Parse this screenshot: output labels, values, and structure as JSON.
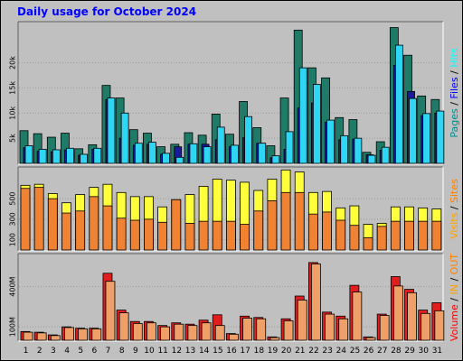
{
  "title": "Daily usage for October 2024",
  "colors": {
    "background": "#c0c0c0",
    "title": "#0000ff",
    "pages": "#008b8b",
    "files": "#0000ff",
    "hits": "#00ffff",
    "pages_bar": "#1f7b67",
    "files_bar": "#1a1a9c",
    "hits_bar": "#2fd6f4",
    "visits": "#ff8000",
    "sites": "#ff8000",
    "visits_bar": "#ffff3c",
    "sites_bar": "#ef8233",
    "volume": "#ff0000",
    "in": "#ffa000",
    "out": "#ff8000",
    "volume_bar": "#e01e1e",
    "in_bar": "#ef9f68",
    "weekend_label": "#008000",
    "day_label": "#000000"
  },
  "right_labels": {
    "top": [
      {
        "text": "Pages",
        "color": "#008b8b"
      },
      {
        "text": " / ",
        "color": "#000000"
      },
      {
        "text": "Files",
        "color": "#0000ff"
      },
      {
        "text": " / ",
        "color": "#000000"
      },
      {
        "text": "Hits",
        "color": "#00ffff"
      }
    ],
    "middle": [
      {
        "text": "Visits",
        "color": "#ffa000"
      },
      {
        "text": " / ",
        "color": "#000000"
      },
      {
        "text": "Sites",
        "color": "#ff8000"
      }
    ],
    "bottom": [
      {
        "text": "Volume",
        "color": "#ff0000"
      },
      {
        "text": " / ",
        "color": "#000000"
      },
      {
        "text": "IN",
        "color": "#ffa000"
      },
      {
        "text": " / ",
        "color": "#000000"
      },
      {
        "text": "OUT",
        "color": "#ff8000"
      }
    ]
  },
  "chart_data": [
    {
      "type": "bar",
      "title": "",
      "y_ticks": [
        "5k",
        "10k",
        "15k",
        "20k"
      ],
      "y_tick_values": [
        5000,
        10000,
        15000,
        20000
      ],
      "ylim": [
        0,
        28000
      ],
      "categories": [
        "1",
        "2",
        "3",
        "4",
        "5",
        "6",
        "7",
        "8",
        "9",
        "10",
        "11",
        "12",
        "13",
        "14",
        "15",
        "16",
        "17",
        "18",
        "19",
        "20",
        "21",
        "22",
        "23",
        "24",
        "25",
        "26",
        "27",
        "28",
        "29",
        "30",
        "31"
      ],
      "weekend_days": [
        5,
        6,
        12,
        13,
        19,
        20,
        26,
        27
      ],
      "series": [
        {
          "name": "Pages",
          "values": [
            6500,
            5900,
            5200,
            6000,
            2900,
            3700,
            15500,
            13000,
            6700,
            6000,
            3300,
            3800,
            6100,
            5600,
            9800,
            5800,
            12300,
            7100,
            3500,
            13000,
            26500,
            19000,
            17000,
            9100,
            8700,
            2200,
            4300,
            27000,
            21500,
            13400,
            12700
          ]
        },
        {
          "name": "Files",
          "values": [
            3100,
            2400,
            2300,
            2700,
            1600,
            2800,
            12700,
            5000,
            3600,
            3800,
            1800,
            3300,
            3800,
            3800,
            4700,
            3300,
            5100,
            4000,
            1100,
            2800,
            11000,
            12000,
            8200,
            4700,
            4800,
            1700,
            2600,
            19500,
            14300,
            9500,
            10000
          ]
        },
        {
          "name": "Hits",
          "values": [
            3500,
            2800,
            2700,
            3000,
            1800,
            3000,
            13000,
            10000,
            4000,
            4200,
            2000,
            1200,
            3900,
            3300,
            7200,
            3600,
            9300,
            4000,
            1500,
            6300,
            19000,
            15700,
            8600,
            5500,
            5000,
            1600,
            3200,
            23500,
            12900,
            9900,
            10400
          ]
        }
      ]
    },
    {
      "type": "bar",
      "title": "",
      "y_ticks": [
        "100",
        "300",
        "500"
      ],
      "y_tick_values": [
        100,
        300,
        500
      ],
      "ylim": [
        0,
        800
      ],
      "categories": [
        "1",
        "2",
        "3",
        "4",
        "5",
        "6",
        "7",
        "8",
        "9",
        "10",
        "11",
        "12",
        "13",
        "14",
        "15",
        "16",
        "17",
        "18",
        "19",
        "20",
        "21",
        "22",
        "23",
        "24",
        "25",
        "26",
        "27",
        "28",
        "29",
        "30",
        "31"
      ],
      "series": [
        {
          "name": "Visits",
          "values": [
            630,
            640,
            550,
            460,
            540,
            610,
            640,
            560,
            520,
            520,
            420,
            490,
            540,
            620,
            690,
            680,
            660,
            580,
            690,
            780,
            760,
            560,
            570,
            410,
            430,
            250,
            260,
            420,
            420,
            410,
            400
          ]
        },
        {
          "name": "Sites",
          "values": [
            600,
            610,
            500,
            360,
            380,
            520,
            430,
            310,
            290,
            300,
            270,
            490,
            260,
            280,
            280,
            280,
            250,
            380,
            480,
            560,
            560,
            350,
            370,
            290,
            240,
            120,
            230,
            280,
            280,
            280,
            280
          ]
        }
      ]
    },
    {
      "type": "bar",
      "title": "",
      "y_ticks": [
        "100M",
        "400M"
      ],
      "y_tick_values": [
        100,
        400
      ],
      "ylim": [
        0,
        640
      ],
      "categories": [
        "1",
        "2",
        "3",
        "4",
        "5",
        "6",
        "7",
        "8",
        "9",
        "10",
        "11",
        "12",
        "13",
        "14",
        "15",
        "16",
        "17",
        "18",
        "19",
        "20",
        "21",
        "22",
        "23",
        "24",
        "25",
        "26",
        "27",
        "28",
        "29",
        "30",
        "31"
      ],
      "series": [
        {
          "name": "Volume",
          "values": [
            65,
            60,
            40,
            100,
            90,
            90,
            500,
            225,
            140,
            140,
            110,
            130,
            120,
            150,
            190,
            50,
            180,
            170,
            25,
            160,
            330,
            580,
            210,
            180,
            410,
            25,
            195,
            475,
            380,
            225,
            280
          ]
        },
        {
          "name": "IN",
          "values": [
            60,
            55,
            35,
            95,
            85,
            85,
            440,
            205,
            125,
            130,
            100,
            120,
            110,
            130,
            110,
            45,
            165,
            160,
            20,
            145,
            300,
            570,
            195,
            160,
            360,
            20,
            185,
            405,
            355,
            200,
            220
          ]
        }
      ]
    }
  ]
}
